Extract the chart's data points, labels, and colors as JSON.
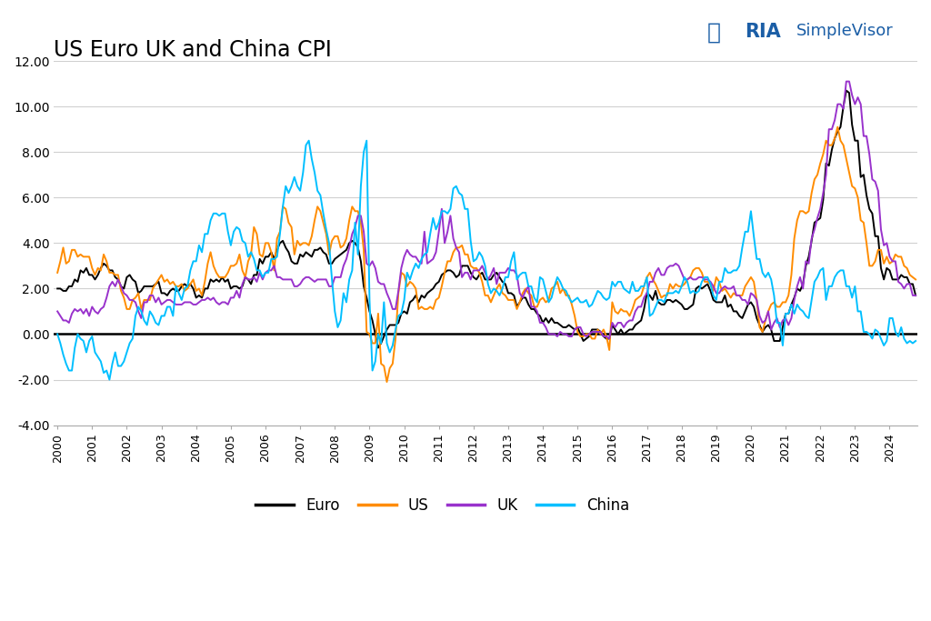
{
  "title": "US Euro UK and China CPI",
  "colors": {
    "Euro": "#000000",
    "US": "#FF8C00",
    "UK": "#9932CC",
    "China": "#00BFFF"
  },
  "ylim": [
    -4.0,
    12.0
  ],
  "yticks": [
    -4.0,
    -2.0,
    0.0,
    2.0,
    4.0,
    6.0,
    8.0,
    10.0,
    12.0
  ],
  "background_color": "#ffffff",
  "grid_color": "#d0d0d0",
  "logo_text": "RIA",
  "logo_sub": "SimpleVisor",
  "legend_labels": [
    "Euro",
    "US",
    "UK",
    "China"
  ],
  "Euro_monthly": [
    2.0,
    2.0,
    1.9,
    1.9,
    2.1,
    2.1,
    2.4,
    2.3,
    2.8,
    2.7,
    2.9,
    2.6,
    2.6,
    2.4,
    2.6,
    2.9,
    3.1,
    3.0,
    2.8,
    2.8,
    2.5,
    2.4,
    2.1,
    2.0,
    2.5,
    2.6,
    2.4,
    2.3,
    1.8,
    1.9,
    2.1,
    2.1,
    2.1,
    2.1,
    2.2,
    2.3,
    1.8,
    1.8,
    1.7,
    1.9,
    2.0,
    1.9,
    1.9,
    2.1,
    2.2,
    2.1,
    2.2,
    2.0,
    1.6,
    1.7,
    1.6,
    2.0,
    2.0,
    2.4,
    2.3,
    2.4,
    2.3,
    2.5,
    2.3,
    2.4,
    2.0,
    2.1,
    2.1,
    2.0,
    2.1,
    2.5,
    2.4,
    2.2,
    2.6,
    2.6,
    3.3,
    3.1,
    3.4,
    3.4,
    3.6,
    3.3,
    3.7,
    4.0,
    4.1,
    3.8,
    3.6,
    3.2,
    3.1,
    3.1,
    3.5,
    3.4,
    3.6,
    3.5,
    3.4,
    3.7,
    3.7,
    3.8,
    3.6,
    3.5,
    3.1,
    3.1,
    3.3,
    3.4,
    3.5,
    3.6,
    3.7,
    4.0,
    4.1,
    4.0,
    3.8,
    3.2,
    2.1,
    1.6,
    1.0,
    0.6,
    0.0,
    -0.6,
    -0.4,
    -0.1,
    0.2,
    0.4,
    0.4,
    0.4,
    0.5,
    0.9,
    1.0,
    0.9,
    1.4,
    1.5,
    1.7,
    1.4,
    1.7,
    1.6,
    1.8,
    1.9,
    2.0,
    2.2,
    2.3,
    2.6,
    2.7,
    2.8,
    2.8,
    2.7,
    2.5,
    2.6,
    3.0,
    3.0,
    3.0,
    2.7,
    2.5,
    2.4,
    2.6,
    2.7,
    2.4,
    2.4,
    2.4,
    2.6,
    2.7,
    2.5,
    2.3,
    2.2,
    1.8,
    1.8,
    1.7,
    1.2,
    1.4,
    1.6,
    1.6,
    1.3,
    1.1,
    1.1,
    0.9,
    0.8,
    0.5,
    0.7,
    0.5,
    0.7,
    0.5,
    0.5,
    0.4,
    0.3,
    0.3,
    0.4,
    0.3,
    0.2,
    0.3,
    0.0,
    -0.3,
    -0.2,
    -0.1,
    0.2,
    0.2,
    0.2,
    0.1,
    -0.1,
    -0.2,
    -0.2,
    0.4,
    0.2,
    0.0,
    0.2,
    0.0,
    0.1,
    0.2,
    0.2,
    0.4,
    0.5,
    0.6,
    1.1,
    1.8,
    1.7,
    1.5,
    1.9,
    1.4,
    1.3,
    1.3,
    1.5,
    1.5,
    1.4,
    1.5,
    1.4,
    1.3,
    1.1,
    1.1,
    1.2,
    1.3,
    2.0,
    2.1,
    2.0,
    2.1,
    2.2,
    1.9,
    1.5,
    1.4,
    1.4,
    1.4,
    1.7,
    1.2,
    1.3,
    1.0,
    1.0,
    0.8,
    0.7,
    1.0,
    1.3,
    1.4,
    1.2,
    0.7,
    0.4,
    0.1,
    0.3,
    0.4,
    0.2,
    -0.3,
    -0.3,
    -0.3,
    0.3,
    0.9,
    0.9,
    1.3,
    1.6,
    2.0,
    1.9,
    2.2,
    3.0,
    3.4,
    4.1,
    4.9,
    5.0,
    5.1,
    5.9,
    7.5,
    7.4,
    8.1,
    8.6,
    8.9,
    9.1,
    10.0,
    10.7,
    10.6,
    9.2,
    8.5,
    8.5,
    6.9,
    7.0,
    6.1,
    5.5,
    5.3,
    4.3,
    4.3,
    2.9,
    2.4,
    2.9,
    2.8,
    2.4,
    2.4,
    2.4,
    2.6,
    2.5,
    2.5,
    2.2,
    2.2,
    1.7
  ],
  "US_monthly": [
    2.7,
    3.2,
    3.8,
    3.1,
    3.2,
    3.7,
    3.7,
    3.4,
    3.5,
    3.4,
    3.4,
    3.4,
    2.9,
    2.6,
    2.9,
    2.8,
    3.5,
    3.2,
    2.7,
    2.7,
    2.6,
    2.6,
    1.9,
    1.6,
    1.1,
    1.1,
    1.5,
    1.6,
    1.8,
    1.1,
    1.5,
    1.5,
    1.5,
    2.0,
    2.2,
    2.4,
    2.6,
    2.3,
    2.4,
    2.2,
    2.3,
    2.1,
    2.1,
    2.2,
    1.9,
    2.0,
    2.2,
    2.4,
    1.9,
    2.0,
    1.7,
    2.3,
    3.1,
    3.6,
    3.0,
    2.7,
    2.5,
    2.5,
    2.5,
    2.7,
    3.0,
    3.0,
    3.1,
    3.5,
    2.8,
    2.5,
    3.2,
    3.5,
    4.7,
    4.4,
    3.5,
    3.4,
    4.0,
    4.0,
    3.6,
    2.8,
    4.2,
    4.5,
    5.6,
    5.5,
    4.9,
    4.7,
    3.5,
    4.1,
    3.9,
    4.0,
    4.0,
    3.9,
    4.3,
    5.0,
    5.6,
    5.4,
    4.9,
    4.4,
    3.5,
    4.1,
    4.3,
    4.3,
    3.8,
    3.9,
    4.2,
    5.0,
    5.6,
    5.4,
    5.4,
    4.9,
    3.7,
    0.1,
    0.0,
    -0.4,
    -0.4,
    0.9,
    -1.3,
    -1.4,
    -2.1,
    -1.5,
    -1.3,
    -0.2,
    1.8,
    2.7,
    2.6,
    2.1,
    2.3,
    2.2,
    2.0,
    1.1,
    1.2,
    1.1,
    1.1,
    1.2,
    1.1,
    1.5,
    1.6,
    2.1,
    2.7,
    3.2,
    3.2,
    3.6,
    3.8,
    3.8,
    3.9,
    3.5,
    3.5,
    3.0,
    2.9,
    2.9,
    2.7,
    2.3,
    1.7,
    1.7,
    1.4,
    1.7,
    2.0,
    2.2,
    1.8,
    1.7,
    1.5,
    1.5,
    1.5,
    1.1,
    1.4,
    1.8,
    2.0,
    1.8,
    1.7,
    1.2,
    1.2,
    1.5,
    1.6,
    1.4,
    1.5,
    2.0,
    2.1,
    2.3,
    1.8,
    2.0,
    1.7,
    1.7,
    1.3,
    0.8,
    0.1,
    -0.1,
    -0.1,
    0.0,
    0.0,
    -0.2,
    -0.2,
    0.2,
    0.0,
    0.2,
    -0.1,
    -0.7,
    1.4,
    1.0,
    0.9,
    1.1,
    1.0,
    1.0,
    0.8,
    1.1,
    1.5,
    1.6,
    1.7,
    2.1,
    2.5,
    2.7,
    2.4,
    2.2,
    1.9,
    1.6,
    1.7,
    1.7,
    2.2,
    2.0,
    2.2,
    2.1,
    2.1,
    2.2,
    2.4,
    2.5,
    2.8,
    2.9,
    2.9,
    2.7,
    2.3,
    2.3,
    2.2,
    1.9,
    2.5,
    2.3,
    1.9,
    2.0,
    1.8,
    1.6,
    1.8,
    1.7,
    1.7,
    1.7,
    2.1,
    2.3,
    2.5,
    2.3,
    1.5,
    0.3,
    0.1,
    0.6,
    1.0,
    1.3,
    1.4,
    1.2,
    1.2,
    1.4,
    1.4,
    1.7,
    2.6,
    4.2,
    5.0,
    5.4,
    5.4,
    5.3,
    5.4,
    6.2,
    6.8,
    7.0,
    7.5,
    7.9,
    8.5,
    8.3,
    8.3,
    8.6,
    9.1,
    8.5,
    8.3,
    7.7,
    7.1,
    6.5,
    6.4,
    6.0,
    5.0,
    4.9,
    4.0,
    3.0,
    3.0,
    3.2,
    3.7,
    3.7,
    3.1,
    3.4,
    3.1,
    3.2,
    3.5,
    3.4,
    3.4,
    3.0,
    2.9,
    2.6,
    2.5,
    2.4
  ],
  "UK_monthly": [
    1.0,
    0.8,
    0.6,
    0.6,
    0.5,
    0.9,
    1.1,
    1.0,
    1.1,
    0.9,
    1.1,
    0.8,
    1.2,
    1.0,
    0.9,
    1.1,
    1.2,
    1.6,
    2.1,
    2.3,
    2.1,
    2.4,
    2.1,
    1.8,
    1.7,
    1.5,
    1.5,
    1.4,
    1.0,
    0.7,
    1.4,
    1.4,
    1.7,
    1.7,
    1.4,
    1.6,
    1.3,
    1.4,
    1.5,
    1.5,
    1.4,
    1.3,
    1.3,
    1.3,
    1.4,
    1.4,
    1.4,
    1.3,
    1.3,
    1.4,
    1.5,
    1.5,
    1.6,
    1.5,
    1.6,
    1.4,
    1.3,
    1.4,
    1.4,
    1.3,
    1.6,
    1.6,
    1.9,
    1.6,
    2.2,
    2.5,
    2.4,
    2.4,
    2.5,
    2.3,
    2.7,
    2.4,
    2.7,
    2.8,
    2.8,
    3.0,
    2.5,
    2.5,
    2.4,
    2.4,
    2.4,
    2.4,
    2.1,
    2.1,
    2.2,
    2.4,
    2.5,
    2.5,
    2.4,
    2.3,
    2.4,
    2.4,
    2.4,
    2.4,
    2.1,
    2.1,
    2.5,
    2.5,
    2.5,
    3.0,
    3.3,
    3.8,
    4.4,
    4.7,
    5.2,
    5.2,
    4.5,
    3.1,
    3.0,
    3.2,
    2.9,
    2.3,
    2.2,
    2.2,
    1.8,
    1.5,
    1.1,
    1.1,
    1.9,
    2.9,
    3.4,
    3.7,
    3.5,
    3.4,
    3.4,
    3.2,
    3.1,
    4.5,
    3.1,
    3.2,
    3.3,
    3.6,
    4.5,
    5.5,
    4.0,
    4.5,
    5.2,
    4.2,
    3.8,
    3.6,
    2.5,
    2.7,
    2.7,
    2.4,
    2.8,
    2.8,
    2.8,
    3.0,
    2.7,
    2.4,
    2.6,
    2.9,
    2.2,
    2.7,
    2.7,
    2.7,
    2.9,
    2.8,
    2.8,
    2.6,
    1.8,
    1.6,
    1.9,
    2.1,
    1.2,
    1.2,
    1.0,
    0.5,
    0.5,
    0.3,
    0.0,
    0.0,
    0.0,
    -0.1,
    0.1,
    0.0,
    0.0,
    -0.1,
    -0.1,
    0.2,
    0.3,
    0.3,
    0.0,
    -0.1,
    0.0,
    0.1,
    0.1,
    0.1,
    0.1,
    -0.1,
    -0.1,
    -0.2,
    0.5,
    0.3,
    0.5,
    0.5,
    0.3,
    0.5,
    0.6,
    0.6,
    1.0,
    1.2,
    1.2,
    1.6,
    1.8,
    2.3,
    2.3,
    2.7,
    2.9,
    2.6,
    2.6,
    2.9,
    3.0,
    3.0,
    3.1,
    3.0,
    2.7,
    2.4,
    2.4,
    2.5,
    2.4,
    2.4,
    2.5,
    2.5,
    2.4,
    2.4,
    2.3,
    2.1,
    1.8,
    1.8,
    2.0,
    2.1,
    2.0,
    2.0,
    2.1,
    1.7,
    1.7,
    1.5,
    1.5,
    1.3,
    1.8,
    1.7,
    1.5,
    0.8,
    0.5,
    0.6,
    1.0,
    0.2,
    0.5,
    0.7,
    0.3,
    0.6,
    0.7,
    0.4,
    0.7,
    1.5,
    2.1,
    2.5,
    2.0,
    3.2,
    3.1,
    4.2,
    4.6,
    5.1,
    5.5,
    6.2,
    7.0,
    9.0,
    9.0,
    9.4,
    10.1,
    10.1,
    9.9,
    11.1,
    11.1,
    10.5,
    10.1,
    10.4,
    10.1,
    8.7,
    8.7,
    7.9,
    6.8,
    6.7,
    6.3,
    4.6,
    3.9,
    4.0,
    3.4,
    3.2,
    3.2,
    2.3,
    2.2,
    2.0,
    2.2,
    2.2,
    1.7,
    1.7
  ],
  "China_monthly": [
    0.0,
    -0.4,
    -0.9,
    -1.3,
    -1.6,
    -1.6,
    -0.6,
    0.0,
    -0.2,
    -0.3,
    -0.8,
    -0.3,
    -0.1,
    -0.8,
    -1.0,
    -1.2,
    -1.7,
    -1.6,
    -2.0,
    -1.3,
    -0.8,
    -1.4,
    -1.4,
    -1.2,
    -0.8,
    -0.4,
    -0.2,
    0.8,
    1.2,
    1.0,
    0.6,
    0.4,
    1.0,
    0.8,
    0.5,
    0.4,
    0.8,
    0.8,
    1.2,
    1.2,
    0.8,
    2.1,
    1.8,
    1.5,
    2.0,
    2.1,
    2.8,
    3.2,
    3.2,
    3.9,
    3.6,
    4.4,
    4.4,
    5.0,
    5.3,
    5.3,
    5.2,
    5.3,
    5.3,
    4.5,
    3.9,
    4.5,
    4.7,
    4.6,
    4.1,
    4.0,
    3.4,
    3.6,
    3.3,
    2.8,
    2.8,
    2.5,
    2.7,
    2.7,
    3.3,
    3.3,
    3.4,
    4.4,
    5.6,
    6.5,
    6.2,
    6.5,
    6.9,
    6.5,
    6.3,
    7.1,
    8.3,
    8.5,
    7.7,
    7.1,
    6.3,
    6.1,
    5.3,
    4.6,
    4.0,
    2.4,
    1.0,
    0.3,
    0.6,
    1.8,
    1.4,
    2.4,
    2.8,
    4.9,
    3.5,
    6.5,
    8.0,
    8.5,
    1.5,
    -1.6,
    -1.2,
    0.0,
    -0.4,
    1.4,
    -0.4,
    -0.8,
    -0.5,
    0.2,
    0.8,
    0.9,
    1.5,
    2.7,
    2.4,
    2.8,
    3.1,
    2.9,
    3.3,
    3.5,
    3.6,
    4.4,
    5.1,
    4.6,
    4.9,
    5.4,
    5.4,
    5.3,
    5.5,
    6.4,
    6.5,
    6.2,
    6.1,
    5.5,
    5.5,
    4.1,
    3.2,
    3.3,
    3.6,
    3.4,
    3.0,
    2.2,
    1.8,
    2.0,
    1.9,
    1.7,
    2.0,
    2.5,
    2.5,
    3.2,
    3.6,
    2.4,
    2.6,
    2.7,
    2.7,
    2.1,
    2.1,
    1.6,
    1.4,
    2.5,
    2.4,
    1.9,
    1.4,
    1.6,
    2.1,
    2.5,
    2.3,
    2.0,
    1.9,
    1.6,
    1.4,
    1.5,
    1.6,
    1.4,
    1.4,
    1.5,
    1.2,
    1.3,
    1.6,
    1.9,
    1.8,
    1.6,
    1.5,
    1.6,
    2.3,
    2.1,
    2.3,
    2.3,
    2.0,
    1.9,
    1.8,
    2.3,
    1.9,
    1.9,
    2.1,
    2.1,
    2.5,
    0.8,
    0.9,
    1.2,
    1.5,
    1.5,
    1.4,
    1.8,
    1.8,
    1.8,
    1.9,
    1.8,
    2.1,
    2.5,
    2.3,
    1.8,
    1.9,
    1.8,
    1.9,
    2.3,
    2.5,
    2.5,
    2.2,
    1.7,
    1.5,
    2.3,
    2.3,
    2.9,
    2.7,
    2.7,
    2.8,
    2.8,
    3.0,
    3.8,
    4.5,
    4.5,
    5.4,
    4.3,
    3.3,
    3.3,
    2.7,
    2.5,
    2.7,
    2.4,
    1.7,
    0.5,
    0.5,
    -0.5,
    0.9,
    0.9,
    1.3,
    0.9,
    1.3,
    1.1,
    1.0,
    0.8,
    0.7,
    1.5,
    2.3,
    2.5,
    2.8,
    2.9,
    1.5,
    2.1,
    2.1,
    2.5,
    2.7,
    2.8,
    2.8,
    2.1,
    2.1,
    1.6,
    2.1,
    1.0,
    1.0,
    0.1,
    0.1,
    0.0,
    -0.2,
    0.2,
    0.1,
    -0.2,
    -0.5,
    -0.3,
    0.7,
    0.7,
    0.1,
    -0.1,
    0.3,
    -0.2,
    -0.4,
    -0.3,
    -0.4,
    -0.3
  ]
}
